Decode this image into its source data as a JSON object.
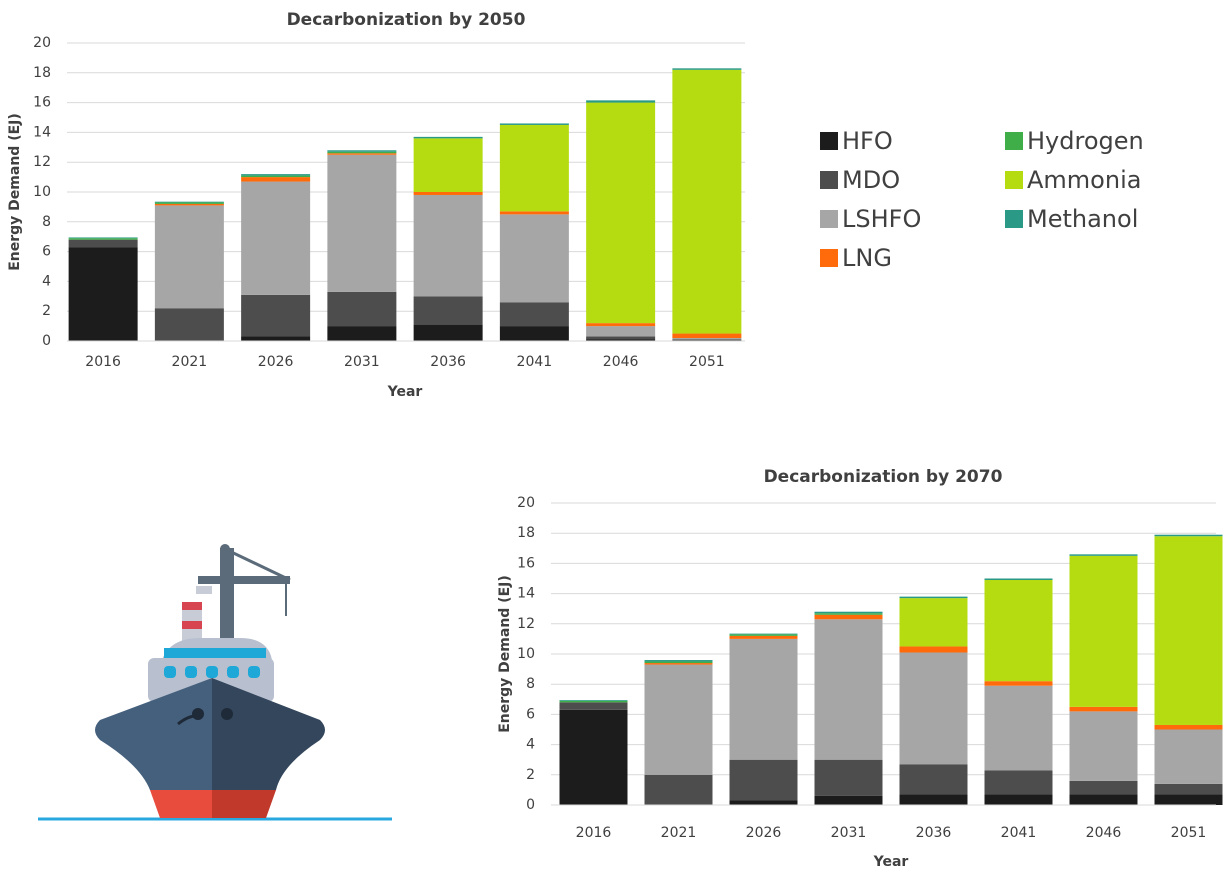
{
  "chart_data": [
    {
      "type": "bar",
      "stacked": true,
      "title": "Decarbonization by 2050",
      "x_label": "Year",
      "y_label": "Energy Demand (EJ)",
      "categories": [
        "2016",
        "2021",
        "2026",
        "2031",
        "2036",
        "2041",
        "2046",
        "2051"
      ],
      "ylim": [
        0,
        20
      ],
      "yticks": [
        0,
        2,
        4,
        6,
        8,
        10,
        12,
        14,
        16,
        18,
        20
      ],
      "grid": true,
      "legend": true,
      "series": [
        {
          "name": "HFO",
          "color": "#1c1c1c",
          "values": [
            6.3,
            0,
            0.3,
            1.0,
            1.1,
            1.0,
            0.1,
            0
          ]
        },
        {
          "name": "MDO",
          "color": "#4d4d4d",
          "values": [
            0.5,
            2.2,
            2.8,
            2.3,
            1.9,
            1.6,
            0.2,
            0.1
          ]
        },
        {
          "name": "LSHFO",
          "color": "#a6a6a6",
          "values": [
            0,
            6.9,
            7.6,
            9.2,
            6.8,
            5.9,
            0.7,
            0.1
          ]
        },
        {
          "name": "LNG",
          "color": "#ff6b0a",
          "values": [
            0,
            0.1,
            0.3,
            0.1,
            0.2,
            0.2,
            0.2,
            0.3
          ]
        },
        {
          "name": "Hydrogen",
          "color": "#3fae49",
          "values": [
            0.1,
            0.1,
            0.1,
            0.1,
            0,
            0,
            0,
            0
          ]
        },
        {
          "name": "Ammonia",
          "color": "#b5dc10",
          "values": [
            0,
            0,
            0,
            0,
            3.6,
            5.8,
            14.8,
            17.7
          ]
        },
        {
          "name": "Methanol",
          "color": "#2a9a86",
          "values": [
            0.05,
            0.05,
            0.1,
            0.1,
            0.1,
            0.1,
            0.15,
            0.1
          ]
        }
      ]
    },
    {
      "type": "bar",
      "stacked": true,
      "title": "Decarbonization by 2070",
      "x_label": "Year",
      "y_label": "Energy Demand (EJ)",
      "categories": [
        "2016",
        "2021",
        "2026",
        "2031",
        "2036",
        "2041",
        "2046",
        "2051"
      ],
      "ylim": [
        0,
        20
      ],
      "yticks": [
        0,
        2,
        4,
        6,
        8,
        10,
        12,
        14,
        16,
        18,
        20
      ],
      "grid": true,
      "legend": false,
      "series": [
        {
          "color": "#1c1c1c",
          "values": [
            6.3,
            0,
            0.3,
            0.6,
            0.7,
            0.7,
            0.7,
            0.7
          ]
        },
        {
          "color": "#4d4d4d",
          "values": [
            0.5,
            2.0,
            2.7,
            2.4,
            2.0,
            1.6,
            0.9,
            0.7
          ]
        },
        {
          "color": "#a6a6a6",
          "values": [
            0,
            7.3,
            8.0,
            9.3,
            7.4,
            5.6,
            4.6,
            3.6
          ]
        },
        {
          "color": "#ff6b0a",
          "values": [
            0,
            0.1,
            0.2,
            0.3,
            0.4,
            0.3,
            0.3,
            0.3
          ]
        },
        {
          "color": "#3fae49",
          "values": [
            0.1,
            0.1,
            0.1,
            0.1,
            0,
            0,
            0,
            0
          ]
        },
        {
          "color": "#b5dc10",
          "values": [
            0,
            0,
            0,
            0,
            3.2,
            6.7,
            10.0,
            12.5
          ]
        },
        {
          "color": "#2a9a86",
          "values": [
            0.05,
            0.1,
            0.05,
            0.1,
            0.1,
            0.1,
            0.1,
            0.1
          ]
        }
      ]
    }
  ]
}
